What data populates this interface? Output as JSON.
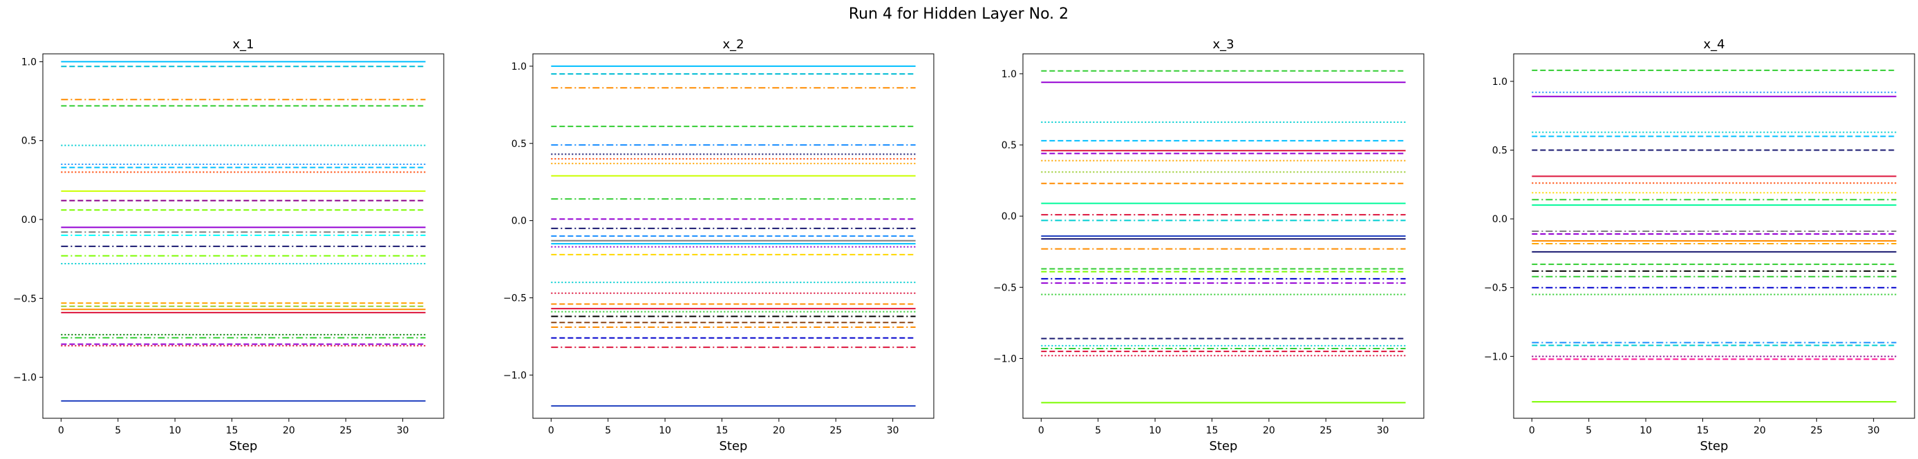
{
  "figure": {
    "title": "Run 4 for Hidden Layer No. 2"
  },
  "chart_data": [
    {
      "type": "line",
      "title": "x_1",
      "xlabel": "Step",
      "ylabel": "",
      "xlim": [
        -1.6,
        33.6
      ],
      "ylim": [
        -1.26,
        1.05
      ],
      "xticks": [
        0,
        5,
        10,
        15,
        20,
        25,
        30
      ],
      "yticks": [
        -1.0,
        -0.5,
        0.0,
        0.5,
        1.0
      ],
      "ytick_labels": [
        "−1.0",
        "−0.5",
        "0.0",
        "0.5",
        "1.0"
      ],
      "x": [
        0,
        32
      ],
      "grid": false,
      "series": [
        {
          "values": [
            1.0,
            1.0
          ],
          "color": "#00bfff",
          "dash": "solid"
        },
        {
          "values": [
            0.97,
            0.97
          ],
          "color": "#00bcd4",
          "dash": "dashed"
        },
        {
          "values": [
            0.76,
            0.76
          ],
          "color": "#ff8c00",
          "dash": "dashdot"
        },
        {
          "values": [
            0.72,
            0.72
          ],
          "color": "#32cd32",
          "dash": "dashed"
        },
        {
          "values": [
            0.47,
            0.47
          ],
          "color": "#00ced1",
          "dash": "dotted"
        },
        {
          "values": [
            0.35,
            0.35
          ],
          "color": "#1e90ff",
          "dash": "dotted"
        },
        {
          "values": [
            0.33,
            0.33
          ],
          "color": "#00bfff",
          "dash": "dashed"
        },
        {
          "values": [
            0.3,
            0.3
          ],
          "color": "#ff4500",
          "dash": "dotted"
        },
        {
          "values": [
            0.18,
            0.18
          ],
          "color": "#ccff00",
          "dash": "solid"
        },
        {
          "values": [
            0.12,
            0.12
          ],
          "color": "#8b008b",
          "dash": "dashed"
        },
        {
          "values": [
            0.06,
            0.06
          ],
          "color": "#7cfc00",
          "dash": "dashed"
        },
        {
          "values": [
            -0.05,
            -0.05
          ],
          "color": "#9400d3",
          "dash": "solid"
        },
        {
          "values": [
            -0.08,
            -0.08
          ],
          "color": "#7f7f7f",
          "dash": "dashdot"
        },
        {
          "values": [
            -0.1,
            -0.1
          ],
          "color": "#00ffff",
          "dash": "dashdot"
        },
        {
          "values": [
            -0.17,
            -0.17
          ],
          "color": "#191970",
          "dash": "dashdot"
        },
        {
          "values": [
            -0.23,
            -0.23
          ],
          "color": "#7cfc00",
          "dash": "dashdot"
        },
        {
          "values": [
            -0.28,
            -0.28
          ],
          "color": "#00ced1",
          "dash": "dotted"
        },
        {
          "values": [
            -0.53,
            -0.53
          ],
          "color": "#ffa500",
          "dash": "dashed"
        },
        {
          "values": [
            -0.55,
            -0.55
          ],
          "color": "#9acd32",
          "dash": "dashed"
        },
        {
          "values": [
            -0.57,
            -0.57
          ],
          "color": "#ff8c00",
          "dash": "solid"
        },
        {
          "values": [
            -0.59,
            -0.59
          ],
          "color": "#dc143c",
          "dash": "solid"
        },
        {
          "values": [
            -0.73,
            -0.73
          ],
          "color": "#008000",
          "dash": "dotted"
        },
        {
          "values": [
            -0.75,
            -0.75
          ],
          "color": "#32cd32",
          "dash": "dashdot"
        },
        {
          "values": [
            -0.79,
            -0.79
          ],
          "color": "#9400d3",
          "dash": "dashed"
        },
        {
          "values": [
            -0.8,
            -0.8
          ],
          "color": "#dc143c",
          "dash": "dotted"
        },
        {
          "values": [
            -1.15,
            -1.15
          ],
          "color": "#1f3fbf",
          "dash": "solid"
        }
      ]
    },
    {
      "type": "line",
      "title": "x_2",
      "xlabel": "Step",
      "ylabel": "",
      "xlim": [
        -1.6,
        33.6
      ],
      "ylim": [
        -1.28,
        1.08
      ],
      "xticks": [
        0,
        5,
        10,
        15,
        20,
        25,
        30
      ],
      "yticks": [
        -1.0,
        -0.5,
        0.0,
        0.5,
        1.0
      ],
      "ytick_labels": [
        "−1.0",
        "−0.5",
        "0.0",
        "0.5",
        "1.0"
      ],
      "x": [
        0,
        32
      ],
      "grid": false,
      "series": [
        {
          "values": [
            1.0,
            1.0
          ],
          "color": "#00bfff",
          "dash": "solid"
        },
        {
          "values": [
            0.95,
            0.95
          ],
          "color": "#00bcd4",
          "dash": "dashed"
        },
        {
          "values": [
            0.86,
            0.86
          ],
          "color": "#ff8c00",
          "dash": "dashdot"
        },
        {
          "values": [
            0.61,
            0.61
          ],
          "color": "#32cd32",
          "dash": "dashed"
        },
        {
          "values": [
            0.49,
            0.49
          ],
          "color": "#1e90ff",
          "dash": "dashdot"
        },
        {
          "values": [
            0.43,
            0.43
          ],
          "color": "#191970",
          "dash": "dotted"
        },
        {
          "values": [
            0.4,
            0.4
          ],
          "color": "#ff4500",
          "dash": "dotted"
        },
        {
          "values": [
            0.37,
            0.37
          ],
          "color": "#ffa500",
          "dash": "dotted"
        },
        {
          "values": [
            0.29,
            0.29
          ],
          "color": "#ccff00",
          "dash": "solid"
        },
        {
          "values": [
            0.14,
            0.14
          ],
          "color": "#32cd32",
          "dash": "dashdot"
        },
        {
          "values": [
            0.01,
            0.01
          ],
          "color": "#9400d3",
          "dash": "dashed"
        },
        {
          "values": [
            -0.05,
            -0.05
          ],
          "color": "#191970",
          "dash": "dashdot"
        },
        {
          "values": [
            -0.1,
            -0.1
          ],
          "color": "#1e90ff",
          "dash": "dashed"
        },
        {
          "values": [
            -0.13,
            -0.13
          ],
          "color": "#7f7f7f",
          "dash": "solid"
        },
        {
          "values": [
            -0.15,
            -0.15
          ],
          "color": "#00bfff",
          "dash": "solid"
        },
        {
          "values": [
            -0.17,
            -0.17
          ],
          "color": "#9400d3",
          "dash": "dotted"
        },
        {
          "values": [
            -0.22,
            -0.22
          ],
          "color": "#ffd700",
          "dash": "dashed"
        },
        {
          "values": [
            -0.4,
            -0.4
          ],
          "color": "#00ced1",
          "dash": "dotted"
        },
        {
          "values": [
            -0.47,
            -0.47
          ],
          "color": "#dc143c",
          "dash": "dotted"
        },
        {
          "values": [
            -0.54,
            -0.54
          ],
          "color": "#ff8c00",
          "dash": "dashed"
        },
        {
          "values": [
            -0.57,
            -0.57
          ],
          "color": "#dc143c",
          "dash": "solid"
        },
        {
          "values": [
            -0.59,
            -0.59
          ],
          "color": "#32cd32",
          "dash": "dotted"
        },
        {
          "values": [
            -0.62,
            -0.62
          ],
          "color": "#000000",
          "dash": "dashdot"
        },
        {
          "values": [
            -0.66,
            -0.66
          ],
          "color": "#8b4513",
          "dash": "dashed"
        },
        {
          "values": [
            -0.69,
            -0.69
          ],
          "color": "#ff8c00",
          "dash": "dashdot"
        },
        {
          "values": [
            -0.76,
            -0.76
          ],
          "color": "#0000cd",
          "dash": "dashed"
        },
        {
          "values": [
            -0.82,
            -0.82
          ],
          "color": "#dc143c",
          "dash": "dashdot"
        },
        {
          "values": [
            -1.2,
            -1.2
          ],
          "color": "#1f3fbf",
          "dash": "solid"
        }
      ]
    },
    {
      "type": "line",
      "title": "x_3",
      "xlabel": "Step",
      "ylabel": "",
      "xlim": [
        -1.6,
        33.6
      ],
      "ylim": [
        -1.42,
        1.14
      ],
      "xticks": [
        0,
        5,
        10,
        15,
        20,
        25,
        30
      ],
      "yticks": [
        -1.0,
        -0.5,
        0.0,
        0.5,
        1.0
      ],
      "ytick_labels": [
        "−1.0",
        "−0.5",
        "0.0",
        "0.5",
        "1.0"
      ],
      "x": [
        0,
        32
      ],
      "grid": false,
      "series": [
        {
          "values": [
            1.02,
            1.02
          ],
          "color": "#32cd32",
          "dash": "dashed"
        },
        {
          "values": [
            0.94,
            0.94
          ],
          "color": "#9400d3",
          "dash": "solid"
        },
        {
          "values": [
            0.66,
            0.66
          ],
          "color": "#00ced1",
          "dash": "dotted"
        },
        {
          "values": [
            0.53,
            0.53
          ],
          "color": "#00bfff",
          "dash": "dashed"
        },
        {
          "values": [
            0.46,
            0.46
          ],
          "color": "#dc143c",
          "dash": "solid"
        },
        {
          "values": [
            0.44,
            0.44
          ],
          "color": "#9400d3",
          "dash": "dashed"
        },
        {
          "values": [
            0.39,
            0.39
          ],
          "color": "#ffa500",
          "dash": "dotted"
        },
        {
          "values": [
            0.31,
            0.31
          ],
          "color": "#9acd32",
          "dash": "dotted"
        },
        {
          "values": [
            0.23,
            0.23
          ],
          "color": "#ff8c00",
          "dash": "dashed"
        },
        {
          "values": [
            0.09,
            0.09
          ],
          "color": "#00fa9a",
          "dash": "solid"
        },
        {
          "values": [
            0.01,
            0.01
          ],
          "color": "#dc143c",
          "dash": "dashdot"
        },
        {
          "values": [
            -0.03,
            -0.03
          ],
          "color": "#00ced1",
          "dash": "dashdot"
        },
        {
          "values": [
            -0.14,
            -0.14
          ],
          "color": "#1f3fbf",
          "dash": "solid"
        },
        {
          "values": [
            -0.16,
            -0.16
          ],
          "color": "#191970",
          "dash": "solid"
        },
        {
          "values": [
            -0.23,
            -0.23
          ],
          "color": "#ff8c00",
          "dash": "dashdot"
        },
        {
          "values": [
            -0.37,
            -0.37
          ],
          "color": "#32cd32",
          "dash": "dashed"
        },
        {
          "values": [
            -0.39,
            -0.39
          ],
          "color": "#7cfc00",
          "dash": "dashed"
        },
        {
          "values": [
            -0.44,
            -0.44
          ],
          "color": "#0000cd",
          "dash": "dashdot"
        },
        {
          "values": [
            -0.47,
            -0.47
          ],
          "color": "#9400d3",
          "dash": "dashdot"
        },
        {
          "values": [
            -0.55,
            -0.55
          ],
          "color": "#32cd32",
          "dash": "dotted"
        },
        {
          "values": [
            -0.86,
            -0.86
          ],
          "color": "#191970",
          "dash": "dashed"
        },
        {
          "values": [
            -0.91,
            -0.91
          ],
          "color": "#00ced1",
          "dash": "dotted"
        },
        {
          "values": [
            -0.93,
            -0.93
          ],
          "color": "#32cd32",
          "dash": "dashdot"
        },
        {
          "values": [
            -0.95,
            -0.95
          ],
          "color": "#dc143c",
          "dash": "dashed"
        },
        {
          "values": [
            -0.98,
            -0.98
          ],
          "color": "#dc143c",
          "dash": "dotted"
        },
        {
          "values": [
            -1.31,
            -1.31
          ],
          "color": "#7cfc00",
          "dash": "solid"
        }
      ]
    },
    {
      "type": "line",
      "title": "x_4",
      "xlabel": "Step",
      "ylabel": "",
      "xlim": [
        -1.6,
        33.6
      ],
      "ylim": [
        -1.45,
        1.2
      ],
      "xticks": [
        0,
        5,
        10,
        15,
        20,
        25,
        30
      ],
      "yticks": [
        -1.0,
        -0.5,
        0.0,
        0.5,
        1.0
      ],
      "ytick_labels": [
        "−1.0",
        "−0.5",
        "0.0",
        "0.5",
        "1.0"
      ],
      "x": [
        0,
        32
      ],
      "grid": false,
      "series": [
        {
          "values": [
            1.08,
            1.08
          ],
          "color": "#32cd32",
          "dash": "dashed"
        },
        {
          "values": [
            0.92,
            0.92
          ],
          "color": "#1e90ff",
          "dash": "dotted"
        },
        {
          "values": [
            0.89,
            0.89
          ],
          "color": "#9400d3",
          "dash": "solid"
        },
        {
          "values": [
            0.63,
            0.63
          ],
          "color": "#00ced1",
          "dash": "dotted"
        },
        {
          "values": [
            0.6,
            0.6
          ],
          "color": "#00bfff",
          "dash": "dashed"
        },
        {
          "values": [
            0.5,
            0.5
          ],
          "color": "#191970",
          "dash": "dashed"
        },
        {
          "values": [
            0.31,
            0.31
          ],
          "color": "#dc143c",
          "dash": "solid"
        },
        {
          "values": [
            0.26,
            0.26
          ],
          "color": "#ff4500",
          "dash": "dotted"
        },
        {
          "values": [
            0.19,
            0.19
          ],
          "color": "#ffd700",
          "dash": "dotted"
        },
        {
          "values": [
            0.14,
            0.14
          ],
          "color": "#32cd32",
          "dash": "dashdot"
        },
        {
          "values": [
            0.1,
            0.1
          ],
          "color": "#00fa9a",
          "dash": "solid"
        },
        {
          "values": [
            -0.09,
            -0.09
          ],
          "color": "#7f7f7f",
          "dash": "dashdot"
        },
        {
          "values": [
            -0.11,
            -0.11
          ],
          "color": "#9400d3",
          "dash": "dashed"
        },
        {
          "values": [
            -0.16,
            -0.16
          ],
          "color": "#ff8c00",
          "dash": "solid"
        },
        {
          "values": [
            -0.18,
            -0.18
          ],
          "color": "#ffa500",
          "dash": "dashdot"
        },
        {
          "values": [
            -0.24,
            -0.24
          ],
          "color": "#191970",
          "dash": "solid"
        },
        {
          "values": [
            -0.33,
            -0.33
          ],
          "color": "#32cd32",
          "dash": "dashed"
        },
        {
          "values": [
            -0.38,
            -0.38
          ],
          "color": "#000000",
          "dash": "dashdot"
        },
        {
          "values": [
            -0.42,
            -0.42
          ],
          "color": "#32cd32",
          "dash": "dashdot"
        },
        {
          "values": [
            -0.5,
            -0.5
          ],
          "color": "#0000cd",
          "dash": "dashdot"
        },
        {
          "values": [
            -0.55,
            -0.55
          ],
          "color": "#32cd32",
          "dash": "dotted"
        },
        {
          "values": [
            -0.9,
            -0.9
          ],
          "color": "#1e90ff",
          "dash": "dashdot"
        },
        {
          "values": [
            -0.92,
            -0.92
          ],
          "color": "#00ced1",
          "dash": "dashed"
        },
        {
          "values": [
            -1.0,
            -1.0
          ],
          "color": "#8b008b",
          "dash": "dotted"
        },
        {
          "values": [
            -1.02,
            -1.02
          ],
          "color": "#ff1493",
          "dash": "dashed"
        },
        {
          "values": [
            -1.33,
            -1.33
          ],
          "color": "#7cfc00",
          "dash": "solid"
        }
      ]
    }
  ]
}
